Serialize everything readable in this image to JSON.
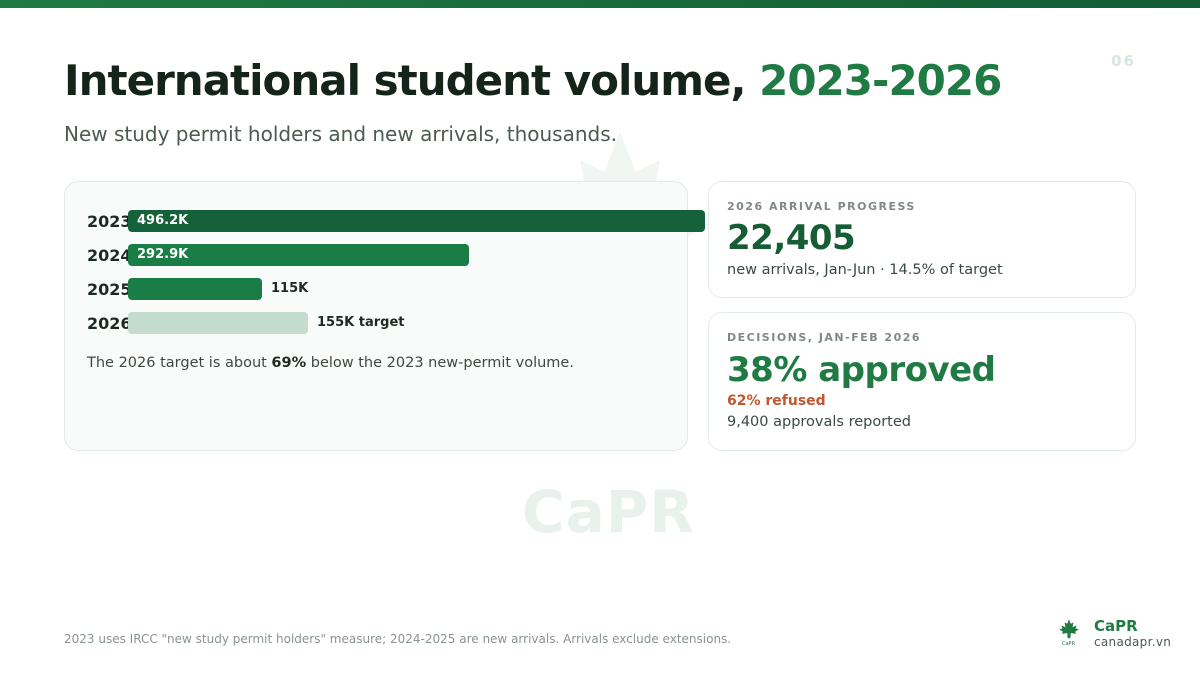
{
  "slide_number": "06",
  "title": {
    "main": "International student volume, ",
    "accent": "2023-2026"
  },
  "subtitle": "New study permit holders and new arrivals, thousands.",
  "watermark": "CaPR",
  "chart_data": {
    "type": "bar",
    "orientation": "horizontal",
    "unit": "thousands",
    "categories": [
      "2023",
      "2024",
      "2025",
      "2026"
    ],
    "values": [
      496.2,
      292.9,
      115,
      155
    ],
    "labels": [
      "496.2K",
      "292.9K",
      "115K",
      "155K target"
    ],
    "colors": [
      "#14613a",
      "#1a7d46",
      "#1a7d46",
      "#c3dccd"
    ],
    "xlim": [
      0,
      496.2
    ],
    "grid": false,
    "legend": "none"
  },
  "chart_note": {
    "before": "The 2026 target is about ",
    "bold": "69%",
    "after": " below the 2023 new-permit volume."
  },
  "arrival_card": {
    "kicker": "2026 ARRIVAL PROGRESS",
    "value": "22,405",
    "detail": "new arrivals, Jan-Jun · 14.5% of target"
  },
  "decision_card": {
    "kicker": "DECISIONS, JAN-FEB 2026",
    "approved": "38% approved",
    "refused": "62% refused",
    "detail": "9,400 approvals reported"
  },
  "footnote": "2023 uses IRCC \"new study permit holders\" measure; 2024-2025 are new arrivals. Arrivals exclude extensions.",
  "brand": {
    "name": "CaPR",
    "url": "canadapr.vn",
    "logo_tag": "CaPR",
    "icon": "maple-leaf-icon"
  },
  "colors": {
    "accent": "#1f7a44",
    "dark_green": "#165c34",
    "refused": "#c2562f"
  }
}
